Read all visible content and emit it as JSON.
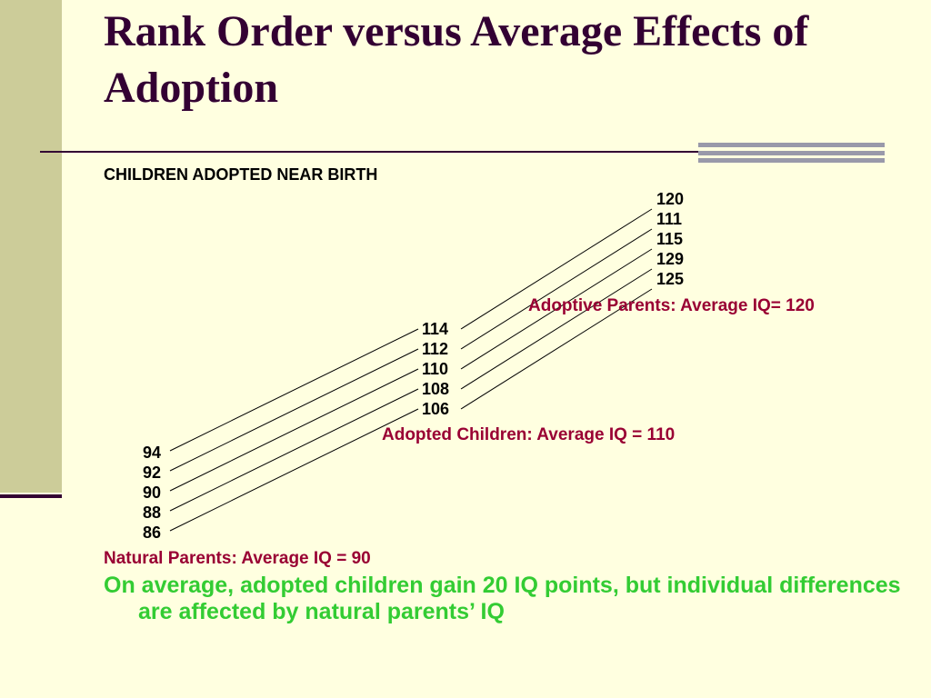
{
  "slide": {
    "title": "Rank Order versus Average Effects of Adoption",
    "section_heading": "CHILDREN ADOPTED NEAR BIRTH",
    "summary": "On average, adopted children gain 20 IQ points, but individual differences are affected by natural parents’ IQ"
  },
  "diagram": {
    "natural_parents": {
      "values": [
        "94",
        "92",
        "90",
        "88",
        "86"
      ],
      "caption": "Natural Parents: Average IQ = 90"
    },
    "adopted_children": {
      "values": [
        "114",
        "112",
        "110",
        "108",
        "106"
      ],
      "caption": "Adopted Children: Average IQ = 110"
    },
    "adoptive_parents": {
      "values": [
        "120",
        "111",
        "115",
        "129",
        "125"
      ],
      "caption": "Adoptive Parents: Average IQ= 120"
    },
    "colors": {
      "caption": "#990033",
      "numbers": "#000000",
      "lines": "#000000",
      "summary": "#33cc33"
    }
  }
}
